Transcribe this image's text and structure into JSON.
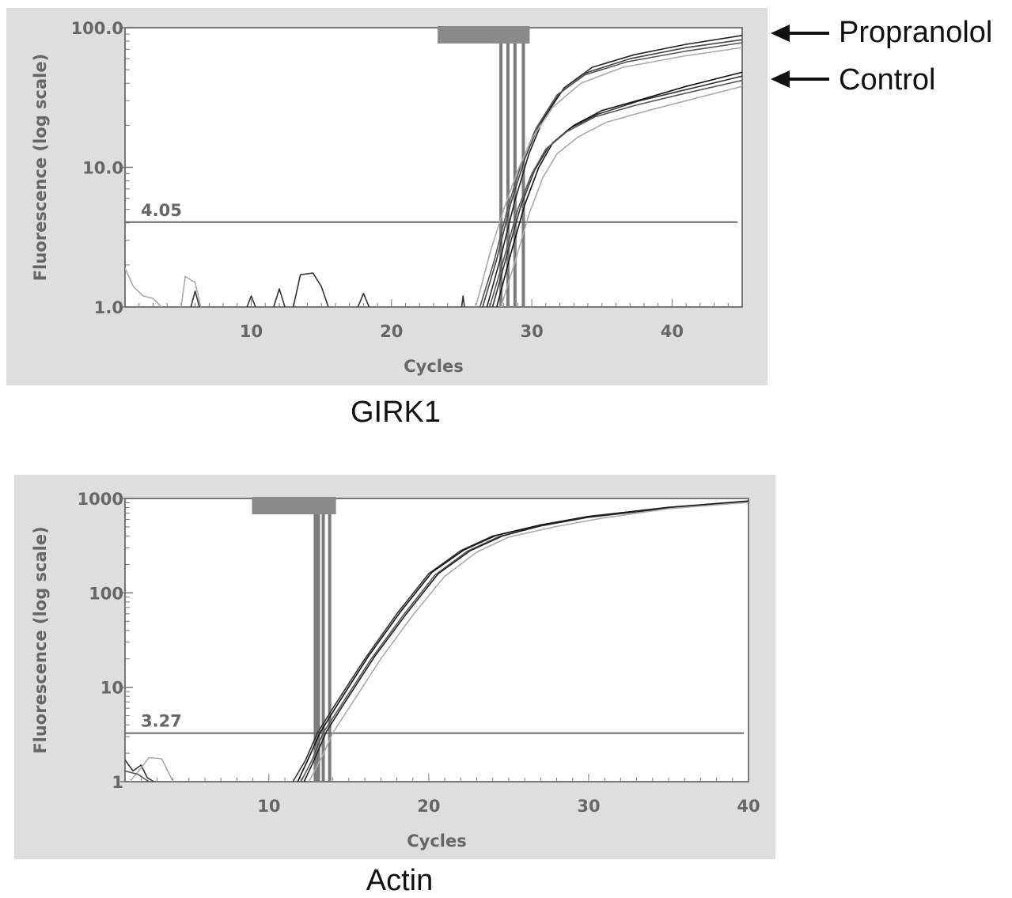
{
  "legend": [
    {
      "label": "Propranolol"
    },
    {
      "label": "Control"
    }
  ],
  "chart_data": [
    {
      "type": "line",
      "title": "GIRK1",
      "xlabel": "Cycles",
      "ylabel": "Fluorescence (log scale)",
      "y_scale": "log",
      "xlim": [
        1,
        45
      ],
      "ylim": [
        1,
        100
      ],
      "x_ticks": [
        10,
        20,
        30,
        40
      ],
      "y_ticks": [
        {
          "value": 1,
          "label": "1.0"
        },
        {
          "value": 10,
          "label": "10.0"
        },
        {
          "value": 100,
          "label": "100.0"
        }
      ],
      "threshold": {
        "value": 4.05,
        "label": "4.05"
      },
      "ct_lines": [
        27.8,
        28.3,
        28.8,
        29.4
      ],
      "series": [
        {
          "group": "Propranolol",
          "color": "#444444",
          "values": [
            {
              "x": 26.5,
              "y": 1.0
            },
            {
              "x": 27.5,
              "y": 2.2
            },
            {
              "x": 28.5,
              "y": 5.5
            },
            {
              "x": 29.5,
              "y": 11.5
            },
            {
              "x": 30.5,
              "y": 20
            },
            {
              "x": 32,
              "y": 34
            },
            {
              "x": 34,
              "y": 48
            },
            {
              "x": 37,
              "y": 60
            },
            {
              "x": 41,
              "y": 72
            },
            {
              "x": 45,
              "y": 82
            }
          ]
        },
        {
          "group": "Propranolol",
          "color": "#222222",
          "values": [
            {
              "x": 26.8,
              "y": 1.0
            },
            {
              "x": 27.8,
              "y": 2.3
            },
            {
              "x": 28.8,
              "y": 5.8
            },
            {
              "x": 29.8,
              "y": 12.5
            },
            {
              "x": 30.8,
              "y": 22
            },
            {
              "x": 32.3,
              "y": 37
            },
            {
              "x": 34.3,
              "y": 52
            },
            {
              "x": 37.3,
              "y": 64
            },
            {
              "x": 41,
              "y": 76
            },
            {
              "x": 45,
              "y": 88
            }
          ]
        },
        {
          "group": "Propranolol",
          "color": "#555555",
          "values": [
            {
              "x": 26.3,
              "y": 1.0
            },
            {
              "x": 27.3,
              "y": 2.1
            },
            {
              "x": 28.3,
              "y": 5.2
            },
            {
              "x": 29.3,
              "y": 11
            },
            {
              "x": 30.3,
              "y": 19
            },
            {
              "x": 31.8,
              "y": 33
            },
            {
              "x": 33.8,
              "y": 46
            },
            {
              "x": 36.8,
              "y": 57
            },
            {
              "x": 41,
              "y": 68
            },
            {
              "x": 45,
              "y": 78
            }
          ]
        },
        {
          "group": "Propranolol",
          "color": "#aaaaaa",
          "values": [
            {
              "x": 26.0,
              "y": 1.0
            },
            {
              "x": 27.0,
              "y": 2.4
            },
            {
              "x": 28.0,
              "y": 5.0
            },
            {
              "x": 29.0,
              "y": 9.5
            },
            {
              "x": 30.0,
              "y": 16
            },
            {
              "x": 31.5,
              "y": 27
            },
            {
              "x": 33.5,
              "y": 40
            },
            {
              "x": 36.5,
              "y": 52
            },
            {
              "x": 41,
              "y": 63
            },
            {
              "x": 45,
              "y": 72
            }
          ]
        },
        {
          "group": "Control",
          "color": "#333333",
          "values": [
            {
              "x": 27.2,
              "y": 1.0
            },
            {
              "x": 28.2,
              "y": 2.3
            },
            {
              "x": 29.2,
              "y": 5.2
            },
            {
              "x": 30.2,
              "y": 9.5
            },
            {
              "x": 31.2,
              "y": 14
            },
            {
              "x": 32.7,
              "y": 19
            },
            {
              "x": 34.7,
              "y": 24
            },
            {
              "x": 37.7,
              "y": 30
            },
            {
              "x": 41,
              "y": 36
            },
            {
              "x": 45,
              "y": 45
            }
          ]
        },
        {
          "group": "Control",
          "color": "#111111",
          "values": [
            {
              "x": 27.5,
              "y": 1.0
            },
            {
              "x": 28.5,
              "y": 2.4
            },
            {
              "x": 29.5,
              "y": 5.4
            },
            {
              "x": 30.5,
              "y": 10
            },
            {
              "x": 31.5,
              "y": 15
            },
            {
              "x": 33,
              "y": 20
            },
            {
              "x": 35,
              "y": 25.5
            },
            {
              "x": 38,
              "y": 31
            },
            {
              "x": 41,
              "y": 38
            },
            {
              "x": 45,
              "y": 48
            }
          ]
        },
        {
          "group": "Control",
          "color": "#555555",
          "values": [
            {
              "x": 27.0,
              "y": 1.0
            },
            {
              "x": 28.0,
              "y": 2.2
            },
            {
              "x": 29.0,
              "y": 5.0
            },
            {
              "x": 30.0,
              "y": 9
            },
            {
              "x": 31.0,
              "y": 13.5
            },
            {
              "x": 32.5,
              "y": 18
            },
            {
              "x": 34.5,
              "y": 23
            },
            {
              "x": 37.5,
              "y": 28
            },
            {
              "x": 41,
              "y": 34
            },
            {
              "x": 45,
              "y": 42
            }
          ]
        },
        {
          "group": "Control",
          "color": "#aaaaaa",
          "values": [
            {
              "x": 27.8,
              "y": 1.0
            },
            {
              "x": 28.8,
              "y": 2.1
            },
            {
              "x": 29.8,
              "y": 4.6
            },
            {
              "x": 30.8,
              "y": 8.5
            },
            {
              "x": 31.8,
              "y": 12.5
            },
            {
              "x": 33.3,
              "y": 16.5
            },
            {
              "x": 35.3,
              "y": 21
            },
            {
              "x": 38.3,
              "y": 25.5
            },
            {
              "x": 41,
              "y": 30
            },
            {
              "x": 45,
              "y": 38
            }
          ]
        },
        {
          "group": "baseline",
          "color": "#aaaaaa",
          "values": [
            {
              "x": 1,
              "y": 1.9
            },
            {
              "x": 1.6,
              "y": 1.4
            },
            {
              "x": 2.3,
              "y": 1.2
            },
            {
              "x": 3,
              "y": 1.15
            },
            {
              "x": 3.6,
              "y": 1.0
            }
          ]
        },
        {
          "group": "baseline",
          "color": "#aaaaaa",
          "values": [
            {
              "x": 5,
              "y": 1.0
            },
            {
              "x": 5.3,
              "y": 1.65
            },
            {
              "x": 6,
              "y": 1.5
            },
            {
              "x": 6.4,
              "y": 1.0
            }
          ]
        },
        {
          "group": "baseline",
          "color": "#333333",
          "values": [
            {
              "x": 5.7,
              "y": 1.0
            },
            {
              "x": 6.0,
              "y": 1.3
            },
            {
              "x": 6.3,
              "y": 1.0
            }
          ]
        },
        {
          "group": "baseline",
          "color": "#333333",
          "values": [
            {
              "x": 9.7,
              "y": 1.0
            },
            {
              "x": 10.0,
              "y": 1.2
            },
            {
              "x": 10.3,
              "y": 1.0
            }
          ]
        },
        {
          "group": "baseline",
          "color": "#333333",
          "values": [
            {
              "x": 11.6,
              "y": 1.0
            },
            {
              "x": 12.0,
              "y": 1.35
            },
            {
              "x": 12.4,
              "y": 1.0
            }
          ]
        },
        {
          "group": "baseline",
          "color": "#333333",
          "values": [
            {
              "x": 13.0,
              "y": 1.0
            },
            {
              "x": 13.5,
              "y": 1.7
            },
            {
              "x": 14.4,
              "y": 1.75
            },
            {
              "x": 15.0,
              "y": 1.4
            },
            {
              "x": 15.5,
              "y": 1.0
            }
          ]
        },
        {
          "group": "baseline",
          "color": "#333333",
          "values": [
            {
              "x": 17.6,
              "y": 1.0
            },
            {
              "x": 18.0,
              "y": 1.25
            },
            {
              "x": 18.4,
              "y": 1.0
            }
          ]
        },
        {
          "group": "baseline",
          "color": "#333333",
          "values": [
            {
              "x": 25.0,
              "y": 1.0
            },
            {
              "x": 25.1,
              "y": 1.2
            },
            {
              "x": 25.2,
              "y": 1.0
            }
          ]
        }
      ]
    },
    {
      "type": "line",
      "title": "Actin",
      "xlabel": "Cycles",
      "ylabel": "Fluorescence (log scale)",
      "y_scale": "log",
      "xlim": [
        1,
        40
      ],
      "ylim": [
        1,
        1000
      ],
      "x_ticks": [
        10,
        20,
        30,
        40
      ],
      "y_ticks": [
        {
          "value": 1,
          "label": "1"
        },
        {
          "value": 10,
          "label": "10"
        },
        {
          "value": 100,
          "label": "100"
        },
        {
          "value": 1000,
          "label": "1000"
        }
      ],
      "threshold": {
        "value": 3.27,
        "label": "3.27"
      },
      "ct_lines": [
        12.9,
        13.1,
        13.4,
        13.8
      ],
      "series": [
        {
          "group": "sample",
          "color": "#333333",
          "values": [
            {
              "x": 11.5,
              "y": 1.0
            },
            {
              "x": 12.3,
              "y": 1.7
            },
            {
              "x": 13.0,
              "y": 3.2
            },
            {
              "x": 14,
              "y": 6
            },
            {
              "x": 16,
              "y": 20
            },
            {
              "x": 18,
              "y": 60
            },
            {
              "x": 20,
              "y": 160
            },
            {
              "x": 22,
              "y": 280
            },
            {
              "x": 24,
              "y": 400
            },
            {
              "x": 27,
              "y": 520
            },
            {
              "x": 30,
              "y": 640
            },
            {
              "x": 35,
              "y": 800
            },
            {
              "x": 40,
              "y": 930
            }
          ]
        },
        {
          "group": "sample",
          "color": "#111111",
          "values": [
            {
              "x": 11.8,
              "y": 1.0
            },
            {
              "x": 12.5,
              "y": 1.8
            },
            {
              "x": 13.2,
              "y": 3.3
            },
            {
              "x": 14.2,
              "y": 6.2
            },
            {
              "x": 16.2,
              "y": 21
            },
            {
              "x": 18.2,
              "y": 62
            },
            {
              "x": 20.2,
              "y": 165
            },
            {
              "x": 22.2,
              "y": 285
            },
            {
              "x": 24.2,
              "y": 405
            },
            {
              "x": 27,
              "y": 525
            },
            {
              "x": 30,
              "y": 645
            },
            {
              "x": 35,
              "y": 805
            },
            {
              "x": 40,
              "y": 940
            }
          ]
        },
        {
          "group": "sample",
          "color": "#555555",
          "values": [
            {
              "x": 12.0,
              "y": 1.0
            },
            {
              "x": 12.7,
              "y": 1.7
            },
            {
              "x": 13.4,
              "y": 3.3
            },
            {
              "x": 14.4,
              "y": 6
            },
            {
              "x": 16.4,
              "y": 20
            },
            {
              "x": 18.4,
              "y": 58
            },
            {
              "x": 20.4,
              "y": 155
            },
            {
              "x": 22.4,
              "y": 275
            },
            {
              "x": 24.4,
              "y": 395
            },
            {
              "x": 27,
              "y": 510
            },
            {
              "x": 30,
              "y": 630
            },
            {
              "x": 35,
              "y": 790
            },
            {
              "x": 40,
              "y": 920
            }
          ]
        },
        {
          "group": "sample",
          "color": "#222222",
          "values": [
            {
              "x": 12.2,
              "y": 1.0
            },
            {
              "x": 12.9,
              "y": 1.8
            },
            {
              "x": 13.6,
              "y": 3.4
            },
            {
              "x": 14.6,
              "y": 6.3
            },
            {
              "x": 16.6,
              "y": 21
            },
            {
              "x": 18.6,
              "y": 60
            },
            {
              "x": 20.6,
              "y": 160
            },
            {
              "x": 22.6,
              "y": 280
            },
            {
              "x": 24.6,
              "y": 400
            },
            {
              "x": 27,
              "y": 515
            },
            {
              "x": 30,
              "y": 635
            },
            {
              "x": 35,
              "y": 795
            },
            {
              "x": 40,
              "y": 925
            }
          ]
        },
        {
          "group": "sample",
          "color": "#aaaaaa",
          "values": [
            {
              "x": 12.5,
              "y": 1.0
            },
            {
              "x": 13.3,
              "y": 1.8
            },
            {
              "x": 14.0,
              "y": 3.3
            },
            {
              "x": 15,
              "y": 6
            },
            {
              "x": 17,
              "y": 20
            },
            {
              "x": 19,
              "y": 58
            },
            {
              "x": 21,
              "y": 150
            },
            {
              "x": 23,
              "y": 270
            },
            {
              "x": 25,
              "y": 390
            },
            {
              "x": 28,
              "y": 505
            },
            {
              "x": 31,
              "y": 625
            },
            {
              "x": 35,
              "y": 780
            },
            {
              "x": 40,
              "y": 910
            }
          ]
        },
        {
          "group": "baseline",
          "color": "#333333",
          "values": [
            {
              "x": 1.0,
              "y": 1.7
            },
            {
              "x": 1.5,
              "y": 1.3
            },
            {
              "x": 2.0,
              "y": 1.5
            },
            {
              "x": 2.4,
              "y": 1.1
            },
            {
              "x": 2.8,
              "y": 1.0
            }
          ]
        },
        {
          "group": "baseline",
          "color": "#aaaaaa",
          "values": [
            {
              "x": 1.3,
              "y": 1.0
            },
            {
              "x": 2.0,
              "y": 1.4
            },
            {
              "x": 2.5,
              "y": 1.8
            },
            {
              "x": 3.3,
              "y": 1.75
            },
            {
              "x": 4.0,
              "y": 1.0
            }
          ]
        },
        {
          "group": "baseline",
          "color": "#555555",
          "values": [
            {
              "x": 1.0,
              "y": 1.3
            },
            {
              "x": 1.8,
              "y": 1.2
            },
            {
              "x": 2.5,
              "y": 1.0
            }
          ]
        }
      ]
    }
  ]
}
